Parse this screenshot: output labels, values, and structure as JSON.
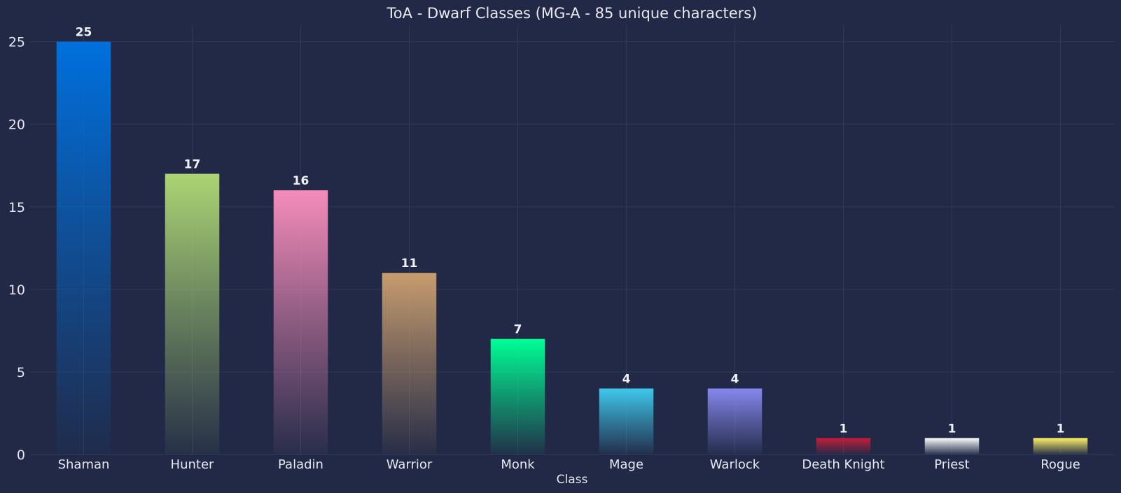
{
  "chart_data": {
    "type": "bar",
    "title": "ToA - Dwarf Classes (MG-A - 85 unique characters)",
    "xlabel": "Class",
    "ylabel": "",
    "categories": [
      "Shaman",
      "Hunter",
      "Paladin",
      "Warrior",
      "Monk",
      "Mage",
      "Warlock",
      "Death Knight",
      "Priest",
      "Rogue"
    ],
    "values": [
      25,
      17,
      16,
      11,
      7,
      4,
      4,
      1,
      1,
      1
    ],
    "colors": [
      "#0070DD",
      "#ABD473",
      "#F58CBA",
      "#C79C6E",
      "#00FF96",
      "#3FC7EB",
      "#8788EE",
      "#C41E3A",
      "#FFFFFF",
      "#FFF468"
    ],
    "ylim": [
      0,
      26
    ],
    "yticks": [
      0,
      5,
      10,
      15,
      20,
      25
    ],
    "grid": true,
    "legend": "none",
    "data_labels": true
  },
  "colors": {
    "background": "#212946",
    "grid": "#2d3a5a",
    "text": "#e8e8f0"
  }
}
